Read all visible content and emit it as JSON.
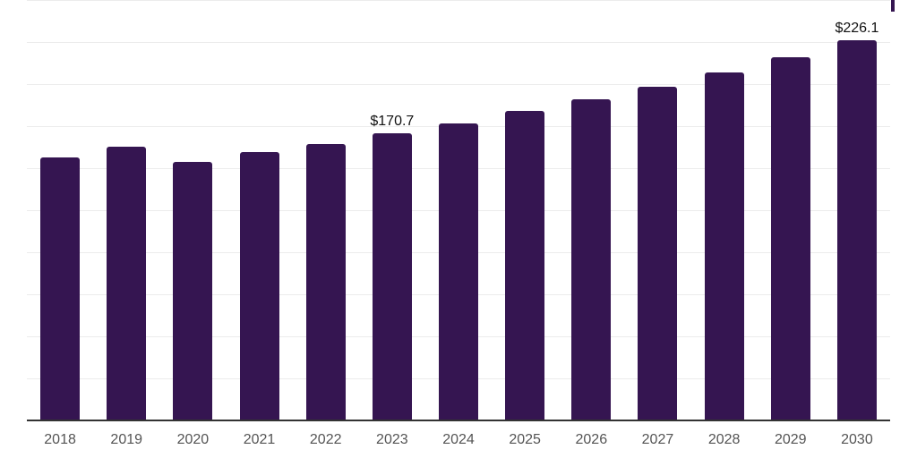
{
  "chart_data": {
    "type": "bar",
    "title": "",
    "xlabel": "",
    "ylabel": "",
    "categories": [
      "2018",
      "2019",
      "2020",
      "2021",
      "2022",
      "2023",
      "2024",
      "2025",
      "2026",
      "2027",
      "2028",
      "2029",
      "2030"
    ],
    "values": [
      156.4,
      162.8,
      153.7,
      159.6,
      164.4,
      170.7,
      176.6,
      184.0,
      191.0,
      198.4,
      206.9,
      216.0,
      226.1
    ],
    "data_labels": [
      null,
      null,
      null,
      null,
      null,
      "$170.7",
      null,
      null,
      null,
      null,
      null,
      null,
      "$226.1"
    ],
    "ylim": [
      0,
      250
    ],
    "grid_step": 25,
    "grid": true,
    "legend": false,
    "y_tick_labels_visible": false,
    "colors": {
      "bar": "#351551",
      "gridline": "#ececec",
      "axis_line": "#333333",
      "tick_label": "#545454",
      "data_label": "#111111",
      "background": "#ffffff"
    }
  }
}
